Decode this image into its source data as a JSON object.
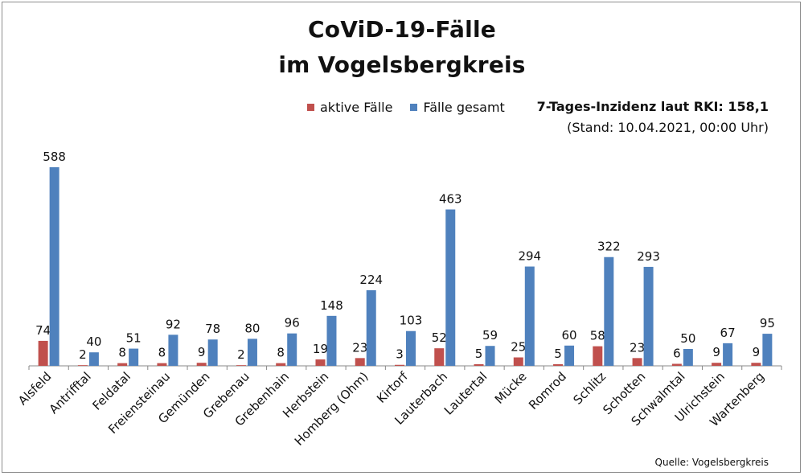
{
  "colors": {
    "active": "#c0504d",
    "total": "#4f81bd",
    "axis": "#888888"
  },
  "chart_data": {
    "type": "bar",
    "title": "CoViD-19-Fälle",
    "subtitle": "im Vogelsbergkreis",
    "categories": [
      "Alsfeld",
      "Antrifftal",
      "Feldatal",
      "Freiensteinau",
      "Gemünden",
      "Grebenau",
      "Grebenhain",
      "Herbstein",
      "Homberg (Ohm)",
      "Kirtorf",
      "Lauterbach",
      "Lautertal",
      "Mücke",
      "Romrod",
      "Schlitz",
      "Schotten",
      "Schwalmtal",
      "Ulrichstein",
      "Wartenberg"
    ],
    "series": [
      {
        "name": "aktive Fälle",
        "values": [
          74,
          2,
          8,
          8,
          9,
          2,
          8,
          19,
          23,
          3,
          52,
          5,
          25,
          5,
          58,
          23,
          6,
          9,
          9
        ]
      },
      {
        "name": "Fälle gesamt",
        "values": [
          588,
          40,
          51,
          92,
          78,
          80,
          96,
          148,
          224,
          103,
          463,
          59,
          294,
          60,
          322,
          293,
          50,
          67,
          95
        ]
      }
    ],
    "ylim": [
      0,
      600
    ],
    "grid": false,
    "legend": "top-center"
  },
  "legend": {
    "active_label": "aktive Fälle",
    "total_label": "Fälle gesamt"
  },
  "incidence": {
    "headline": "7-Tages-Inzidenz laut RKI: 158,1",
    "stand": "(Stand: 10.04.2021, 00:00 Uhr)"
  },
  "source": "Quelle: Vogelsbergkreis"
}
